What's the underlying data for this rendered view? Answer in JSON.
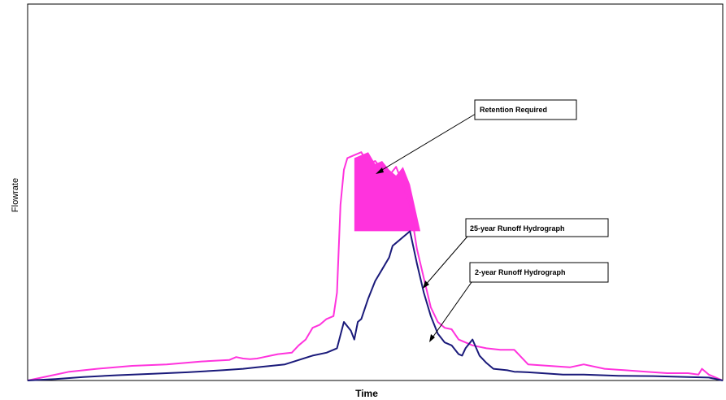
{
  "chart_data": {
    "type": "line",
    "xlabel": "Time",
    "ylabel": "Flowrate",
    "xlim": [
      0,
      100
    ],
    "ylim": [
      0,
      100
    ],
    "grid": false,
    "colors": {
      "series_25yr": "#ff33dd",
      "series_2yr": "#1a1a7a",
      "retention_fill": "#ff33dd"
    },
    "series": [
      {
        "key": "25yr",
        "x": [
          0,
          3,
          6,
          10,
          15,
          20,
          25,
          29,
          30,
          31,
          32,
          33,
          34,
          35,
          36,
          38,
          39,
          40,
          41,
          42,
          43,
          44,
          44.5,
          45,
          45.5,
          46,
          47,
          48,
          49,
          50,
          51,
          52,
          53,
          54,
          55,
          56,
          57,
          58,
          59,
          60,
          61,
          62,
          63,
          64,
          66,
          68,
          70,
          72,
          75,
          78,
          80,
          83,
          86,
          89,
          92,
          95,
          96.5,
          97,
          98,
          100
        ],
        "y": [
          0,
          1.5,
          3,
          4,
          5,
          5.5,
          6.5,
          7,
          8,
          7.5,
          7.3,
          7.5,
          8,
          8.5,
          9,
          9.5,
          12,
          14,
          18,
          19,
          21,
          22,
          30,
          60,
          72,
          76,
          77,
          78,
          74,
          75,
          72,
          70,
          73,
          67,
          60,
          45,
          35,
          25,
          20,
          18,
          17.5,
          14,
          13,
          12,
          11,
          10.5,
          10.5,
          5.5,
          5,
          4.5,
          5.5,
          4,
          3.5,
          3,
          2.5,
          2.5,
          2,
          4,
          2,
          0
        ]
      },
      {
        "key": "2yr",
        "x": [
          0,
          4,
          8,
          13,
          18,
          23,
          28,
          31,
          33,
          35,
          37,
          39,
          41,
          43,
          44.5,
          45.5,
          46.5,
          47,
          47.5,
          48,
          49,
          50,
          51,
          52,
          52.5,
          53,
          54,
          55,
          56,
          57,
          58,
          59,
          60,
          61,
          62,
          62.5,
          63,
          64,
          65,
          66,
          67,
          69,
          70,
          72,
          74,
          77,
          80,
          85,
          90,
          95,
          98,
          100
        ],
        "y": [
          0,
          0.5,
          1.2,
          1.8,
          2.3,
          2.8,
          3.5,
          4,
          4.5,
          5,
          5.5,
          7,
          8.5,
          9.5,
          11,
          20,
          17,
          14,
          20,
          21,
          28,
          34,
          38,
          42,
          46,
          47,
          49,
          51,
          40,
          30,
          22,
          16,
          13,
          12,
          9,
          8.5,
          11,
          14,
          8.5,
          6,
          4,
          3.5,
          3,
          2.8,
          2.5,
          2,
          2,
          1.6,
          1.5,
          1.2,
          1,
          0
        ]
      }
    ],
    "retention_area": {
      "threshold": 51,
      "x": [
        47,
        48,
        49,
        50,
        51,
        52,
        53,
        54,
        55,
        56.5
      ],
      "y": [
        76,
        77,
        78,
        74,
        75,
        72,
        70,
        73,
        67,
        51
      ]
    },
    "annotations": [
      {
        "key": "retention",
        "text": "Retention Required"
      },
      {
        "key": "label_25yr",
        "text": "25-year Runoff Hydrograph"
      },
      {
        "key": "label_2yr",
        "text": "2-year Runoff Hydrograph"
      }
    ]
  }
}
